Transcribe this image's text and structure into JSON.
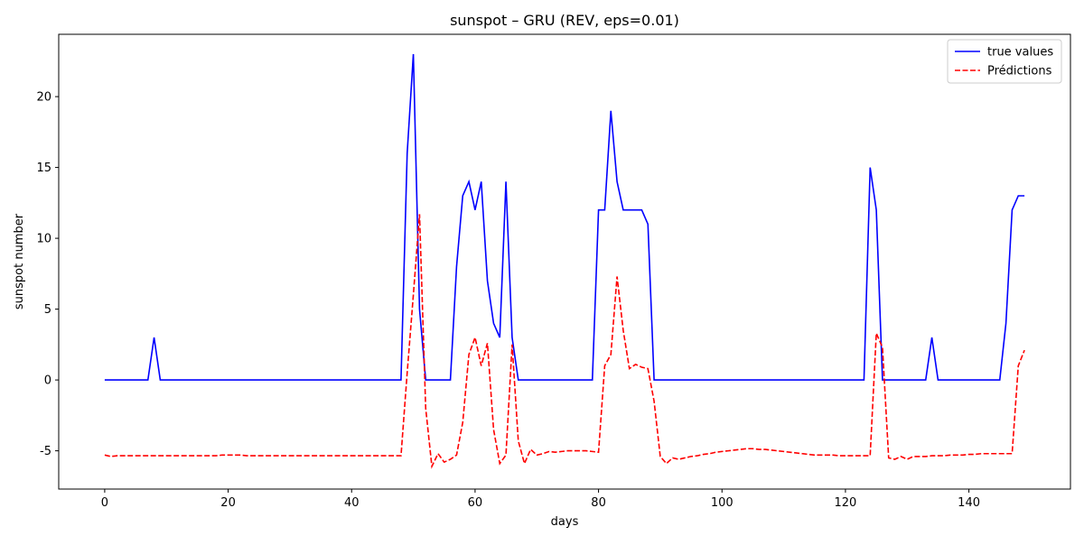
{
  "chart_data": {
    "type": "line",
    "title": "sunspot – GRU (REV, eps=0.01)",
    "xlabel": "days",
    "ylabel": "sunspot number",
    "x": [
      0,
      1,
      2,
      3,
      4,
      5,
      6,
      7,
      8,
      9,
      10,
      11,
      12,
      13,
      14,
      15,
      16,
      17,
      18,
      19,
      20,
      21,
      22,
      23,
      24,
      25,
      26,
      27,
      28,
      29,
      30,
      31,
      32,
      33,
      34,
      35,
      36,
      37,
      38,
      39,
      40,
      41,
      42,
      43,
      44,
      45,
      46,
      47,
      48,
      49,
      50,
      51,
      52,
      53,
      54,
      55,
      56,
      57,
      58,
      59,
      60,
      61,
      62,
      63,
      64,
      65,
      66,
      67,
      68,
      69,
      70,
      71,
      72,
      73,
      74,
      75,
      76,
      77,
      78,
      79,
      80,
      81,
      82,
      83,
      84,
      85,
      86,
      87,
      88,
      89,
      90,
      91,
      92,
      93,
      94,
      95,
      96,
      97,
      98,
      99,
      100,
      101,
      102,
      103,
      104,
      105,
      106,
      107,
      108,
      109,
      110,
      111,
      112,
      113,
      114,
      115,
      116,
      117,
      118,
      119,
      120,
      121,
      122,
      123,
      124,
      125,
      126,
      127,
      128,
      129,
      130,
      131,
      132,
      133,
      134,
      135,
      136,
      137,
      138,
      139,
      140,
      141,
      142,
      143,
      144,
      145,
      146,
      147,
      148,
      149
    ],
    "series": [
      {
        "name": "true values",
        "color": "#0000ff",
        "linestyle": "solid",
        "values": [
          0,
          0,
          0,
          0,
          0,
          0,
          0,
          0,
          3,
          0,
          0,
          0,
          0,
          0,
          0,
          0,
          0,
          0,
          0,
          0,
          0,
          0,
          0,
          0,
          0,
          0,
          0,
          0,
          0,
          0,
          0,
          0,
          0,
          0,
          0,
          0,
          0,
          0,
          0,
          0,
          0,
          0,
          0,
          0,
          0,
          0,
          0,
          0,
          0,
          16,
          23,
          5,
          0,
          0,
          0,
          0,
          0,
          8,
          13,
          14,
          12,
          14,
          7,
          4,
          3,
          14,
          3,
          0,
          0,
          0,
          0,
          0,
          0,
          0,
          0,
          0,
          0,
          0,
          0,
          0,
          12,
          12,
          19,
          14,
          12,
          12,
          12,
          12,
          11,
          0,
          0,
          0,
          0,
          0,
          0,
          0,
          0,
          0,
          0,
          0,
          0,
          0,
          0,
          0,
          0,
          0,
          0,
          0,
          0,
          0,
          0,
          0,
          0,
          0,
          0,
          0,
          0,
          0,
          0,
          0,
          0,
          0,
          0,
          0,
          15,
          12,
          0,
          0,
          0,
          0,
          0,
          0,
          0,
          0,
          3,
          0,
          0,
          0,
          0,
          0,
          0,
          0,
          0,
          0,
          0,
          0,
          4,
          12,
          13,
          13
        ]
      },
      {
        "name": "Prédictions",
        "color": "#ff0000",
        "linestyle": "dashed",
        "values": [
          -5.3,
          -5.4,
          -5.35,
          -5.35,
          -5.35,
          -5.35,
          -5.35,
          -5.35,
          -5.35,
          -5.35,
          -5.35,
          -5.35,
          -5.35,
          -5.35,
          -5.35,
          -5.35,
          -5.35,
          -5.35,
          -5.35,
          -5.3,
          -5.3,
          -5.3,
          -5.3,
          -5.35,
          -5.35,
          -5.35,
          -5.35,
          -5.35,
          -5.35,
          -5.35,
          -5.35,
          -5.35,
          -5.35,
          -5.35,
          -5.35,
          -5.35,
          -5.35,
          -5.35,
          -5.35,
          -5.35,
          -5.35,
          -5.35,
          -5.35,
          -5.35,
          -5.35,
          -5.35,
          -5.35,
          -5.35,
          -5.35,
          0.5,
          6,
          11.7,
          -2,
          -6.1,
          -5.2,
          -5.8,
          -5.6,
          -5.3,
          -3,
          1.8,
          3,
          1,
          2.6,
          -3.5,
          -5.9,
          -5.3,
          2.5,
          -4.3,
          -5.9,
          -4.9,
          -5.3,
          -5.2,
          -5.05,
          -5.1,
          -5.05,
          -5,
          -5,
          -5,
          -5,
          -5.05,
          -5.1,
          1,
          1.8,
          7.3,
          3.5,
          0.8,
          1.1,
          0.9,
          0.8,
          -1.5,
          -5.4,
          -5.9,
          -5.5,
          -5.6,
          -5.5,
          -5.4,
          -5.35,
          -5.25,
          -5.2,
          -5.1,
          -5.05,
          -5,
          -4.95,
          -4.9,
          -4.85,
          -4.85,
          -4.9,
          -4.9,
          -4.95,
          -5,
          -5.05,
          -5.1,
          -5.15,
          -5.2,
          -5.25,
          -5.3,
          -5.3,
          -5.3,
          -5.3,
          -5.35,
          -5.35,
          -5.35,
          -5.35,
          -5.35,
          -5.35,
          3.3,
          2.3,
          -5.5,
          -5.6,
          -5.4,
          -5.6,
          -5.4,
          -5.4,
          -5.4,
          -5.35,
          -5.35,
          -5.35,
          -5.3,
          -5.3,
          -5.3,
          -5.25,
          -5.25,
          -5.2,
          -5.2,
          -5.2,
          -5.2,
          -5.2,
          -5.2,
          1,
          2.1
        ]
      }
    ],
    "xlim": [
      -7.45,
      156.45
    ],
    "xticks": [
      0,
      20,
      40,
      60,
      80,
      100,
      120,
      140
    ],
    "ylim": [
      -7.7,
      24.4
    ],
    "yticks": [
      -5,
      0,
      5,
      10,
      15,
      20
    ],
    "grid": false,
    "legend": "upper right"
  }
}
